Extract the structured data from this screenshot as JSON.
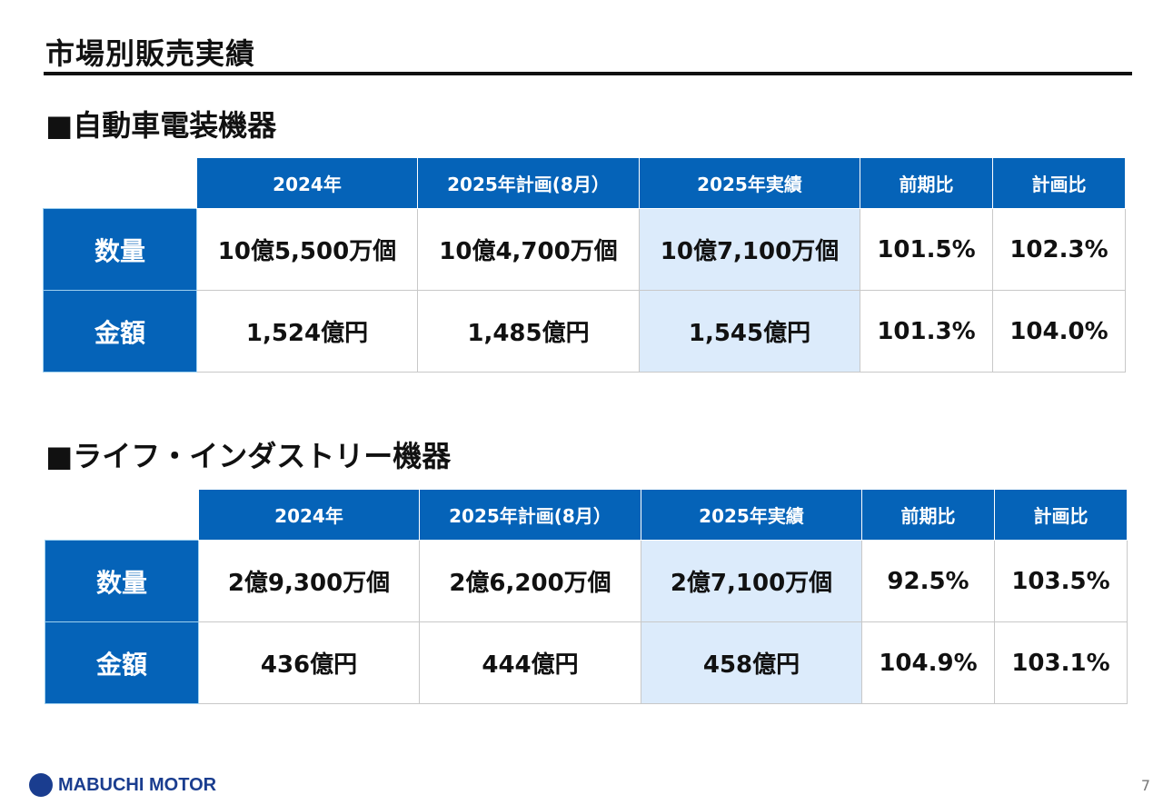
{
  "title": "市場別販売実績",
  "page_number": "7",
  "logo_text": "MABUCHI MOTOR",
  "colors": {
    "header": "#0563b8",
    "highlight": "#dcebfb"
  },
  "columns": [
    "2024年",
    "2025年計画(8月）",
    "2025年実績",
    "前期比",
    "計画比"
  ],
  "sections": [
    {
      "heading": "■自動車電装機器",
      "rows": [
        {
          "label": "数量",
          "values": [
            "10億5,500万個",
            "10億4,700万個",
            "10億7,100万個",
            "101.5%",
            "102.3%"
          ]
        },
        {
          "label": "金額",
          "values": [
            "1,524億円",
            "1,485億円",
            "1,545億円",
            "101.3%",
            "104.0%"
          ]
        }
      ]
    },
    {
      "heading": "■ライフ・インダストリー機器",
      "rows": [
        {
          "label": "数量",
          "values": [
            "2億9,300万個",
            "2億6,200万個",
            "2億7,100万個",
            "92.5%",
            "103.5%"
          ]
        },
        {
          "label": "金額",
          "values": [
            "436億円",
            "444億円",
            "458億円",
            "104.9%",
            "103.1%"
          ]
        }
      ]
    }
  ]
}
